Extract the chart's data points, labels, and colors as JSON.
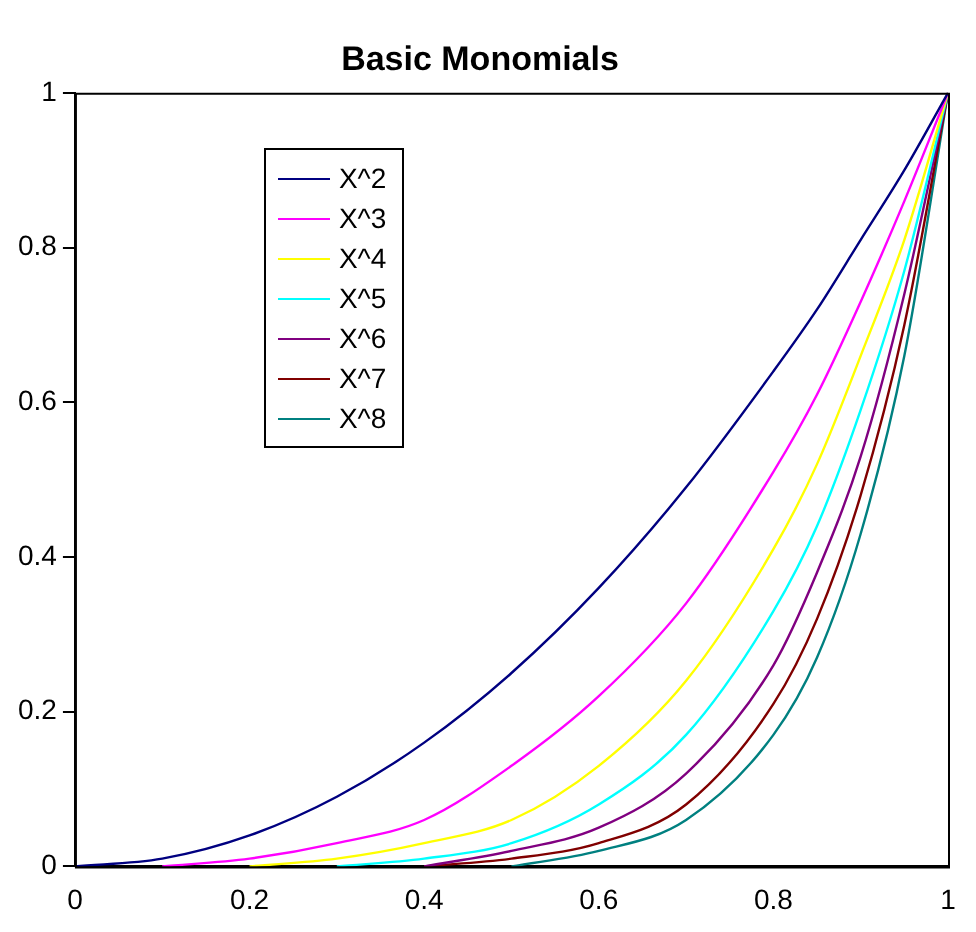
{
  "chart_data": {
    "type": "line",
    "title": "Basic Monomials",
    "x": [
      0,
      0.1,
      0.2,
      0.3,
      0.4,
      0.5,
      0.6,
      0.7,
      0.8,
      0.85,
      0.9,
      0.95,
      1
    ],
    "series": [
      {
        "name": "X^2",
        "color": "#000080",
        "values": [
          0,
          0.01,
          0.04,
          0.09,
          0.16,
          0.25,
          0.36,
          0.49,
          0.64,
          0.72,
          0.81,
          0.9,
          1
        ]
      },
      {
        "name": "X^3",
        "color": "#ff00ff",
        "values": [
          null,
          0,
          0.01,
          0.03,
          0.06,
          0.13,
          0.22,
          0.34,
          0.51,
          0.61,
          0.73,
          0.86,
          1
        ]
      },
      {
        "name": "X^4",
        "color": "#ffff00",
        "values": [
          null,
          null,
          0,
          0.01,
          0.03,
          0.06,
          0.13,
          0.24,
          0.41,
          0.52,
          0.66,
          0.81,
          1
        ]
      },
      {
        "name": "X^5",
        "color": "#00ffff",
        "values": [
          null,
          null,
          null,
          0,
          0.01,
          0.03,
          0.08,
          0.17,
          0.33,
          0.44,
          0.59,
          0.77,
          1
        ]
      },
      {
        "name": "X^6",
        "color": "#800080",
        "values": [
          null,
          null,
          null,
          null,
          0,
          0.02,
          0.05,
          0.12,
          0.26,
          0.38,
          0.53,
          0.74,
          1
        ]
      },
      {
        "name": "X^7",
        "color": "#800000",
        "values": [
          null,
          null,
          null,
          null,
          0,
          0.01,
          0.03,
          0.08,
          0.21,
          0.32,
          0.48,
          0.7,
          1
        ]
      },
      {
        "name": "X^8",
        "color": "#008080",
        "values": [
          null,
          null,
          null,
          null,
          null,
          0,
          0.02,
          0.06,
          0.17,
          0.27,
          0.43,
          0.66,
          1
        ]
      }
    ],
    "xlim": [
      0,
      1
    ],
    "xticks": [
      0,
      0.2,
      0.4,
      0.6,
      0.8,
      1
    ],
    "ylim": [
      0,
      1
    ],
    "yticks": [
      0,
      0.2,
      0.4,
      0.6,
      0.8,
      1
    ],
    "grid": false,
    "legend": "top left",
    "marker": "none",
    "line_style": "solid"
  }
}
